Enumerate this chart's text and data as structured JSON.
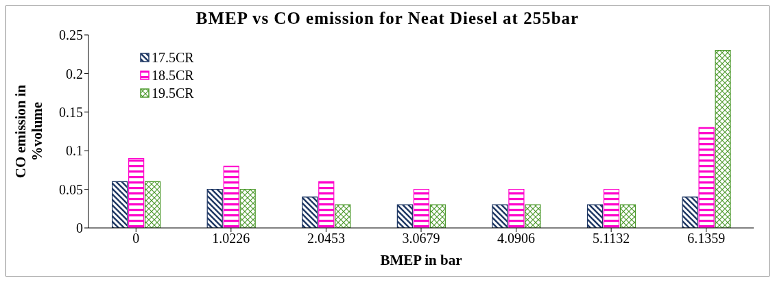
{
  "chart_data": {
    "type": "bar",
    "title": "BMEP vs CO emission for Neat Diesel at 255bar",
    "xlabel": "BMEP in bar",
    "ylabel": "CO emission in %volume",
    "categories": [
      "0",
      "1.0226",
      "2.0453",
      "3.0679",
      "4.0906",
      "5.1132",
      "6.1359"
    ],
    "series": [
      {
        "name": "17.5CR",
        "color": "#1f3864",
        "values": [
          0.06,
          0.05,
          0.04,
          0.03,
          0.03,
          0.03,
          0.04
        ]
      },
      {
        "name": "18.5CR",
        "color": "#ff00cc",
        "values": [
          0.09,
          0.08,
          0.06,
          0.05,
          0.05,
          0.05,
          0.13
        ]
      },
      {
        "name": "19.5CR",
        "color": "#4e9a2e",
        "values": [
          0.06,
          0.05,
          0.03,
          0.03,
          0.03,
          0.03,
          0.23
        ]
      }
    ],
    "ylim": [
      0,
      0.25
    ],
    "yticks": [
      0,
      0.05,
      0.1,
      0.15,
      0.2,
      0.25
    ],
    "legend": "top left"
  }
}
